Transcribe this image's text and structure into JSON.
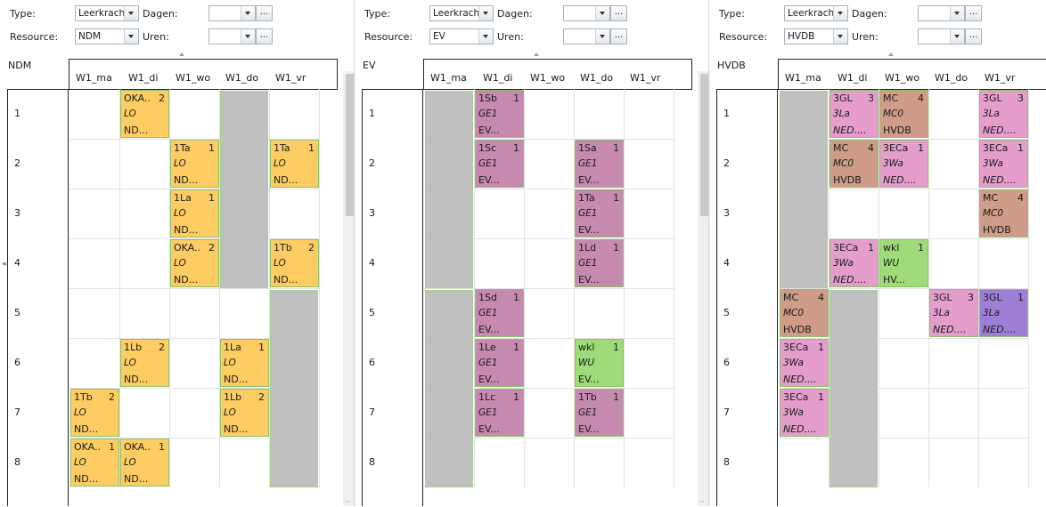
{
  "labels": {
    "type": "Type:",
    "dagen": "Dagen:",
    "resource": "Resource:",
    "uren": "Uren:",
    "ellipsis": "..."
  },
  "days": [
    "W1_ma",
    "W1_di",
    "W1_wo",
    "W1_do",
    "W1_vr"
  ],
  "hours": [
    "1",
    "2",
    "3",
    "4",
    "5",
    "6",
    "7",
    "8"
  ],
  "panels": [
    {
      "type_value": "Leerkrach",
      "resource_value": "NDM",
      "title": "NDM",
      "unavailable": [
        {
          "day": 3,
          "from": 0,
          "to": 4
        },
        {
          "day": 4,
          "from": 4,
          "to": 8
        }
      ],
      "lessons": [
        {
          "day": 1,
          "hour": 0,
          "l1": "OKA..",
          "n": "2",
          "l2": "LO",
          "l3": "ND...",
          "color": "orange"
        },
        {
          "day": 2,
          "hour": 1,
          "l1": "1Ta",
          "n": "1",
          "l2": "LO",
          "l3": "ND...",
          "color": "orange"
        },
        {
          "day": 4,
          "hour": 1,
          "l1": "1Ta",
          "n": "1",
          "l2": "LO",
          "l3": "ND...",
          "color": "orange"
        },
        {
          "day": 2,
          "hour": 2,
          "l1": "1La",
          "n": "1",
          "l2": "LO",
          "l3": "ND...",
          "color": "orange"
        },
        {
          "day": 2,
          "hour": 3,
          "l1": "OKA..",
          "n": "2",
          "l2": "LO",
          "l3": "ND...",
          "color": "orange"
        },
        {
          "day": 4,
          "hour": 3,
          "l1": "1Tb",
          "n": "2",
          "l2": "LO",
          "l3": "ND...",
          "color": "orange"
        },
        {
          "day": 1,
          "hour": 5,
          "l1": "1Lb",
          "n": "2",
          "l2": "LO",
          "l3": "ND...",
          "color": "orange"
        },
        {
          "day": 3,
          "hour": 5,
          "l1": "1La",
          "n": "1",
          "l2": "LO",
          "l3": "ND...",
          "color": "orange"
        },
        {
          "day": 0,
          "hour": 6,
          "l1": "1Tb",
          "n": "2",
          "l2": "LO",
          "l3": "ND...",
          "color": "orange"
        },
        {
          "day": 3,
          "hour": 6,
          "l1": "1Lb",
          "n": "2",
          "l2": "LO",
          "l3": "ND...",
          "color": "orange"
        },
        {
          "day": 0,
          "hour": 7,
          "l1": "OKA..",
          "n": "1",
          "l2": "LO",
          "l3": "ND...",
          "color": "orange"
        },
        {
          "day": 1,
          "hour": 7,
          "l1": "OKA..",
          "n": "1",
          "l2": "LO",
          "l3": "ND...",
          "color": "orange"
        }
      ]
    },
    {
      "type_value": "Leerkrach",
      "resource_value": "EV",
      "title": "EV",
      "unavailable": [
        {
          "day": 0,
          "from": 0,
          "to": 4
        },
        {
          "day": 0,
          "from": 4,
          "to": 8
        }
      ],
      "lessons": [
        {
          "day": 1,
          "hour": 0,
          "l1": "1Sb",
          "n": "1",
          "l2": "GE1",
          "l3": "EV...",
          "color": "purple"
        },
        {
          "day": 1,
          "hour": 1,
          "l1": "1Sc",
          "n": "1",
          "l2": "GE1",
          "l3": "EV...",
          "color": "purple"
        },
        {
          "day": 3,
          "hour": 1,
          "l1": "1Sa",
          "n": "1",
          "l2": "GE1",
          "l3": "EV...",
          "color": "purple"
        },
        {
          "day": 3,
          "hour": 2,
          "l1": "1Ta",
          "n": "1",
          "l2": "GE1",
          "l3": "EV...",
          "color": "purple"
        },
        {
          "day": 3,
          "hour": 3,
          "l1": "1Ld",
          "n": "1",
          "l2": "GE1",
          "l3": "EV...",
          "color": "purple"
        },
        {
          "day": 1,
          "hour": 4,
          "l1": "1Sd",
          "n": "1",
          "l2": "GE1",
          "l3": "EV...",
          "color": "purple"
        },
        {
          "day": 1,
          "hour": 5,
          "l1": "1Le",
          "n": "1",
          "l2": "GE1",
          "l3": "EV...",
          "color": "purple"
        },
        {
          "day": 3,
          "hour": 5,
          "l1": "wkl",
          "n": "1",
          "l2": "WU",
          "l3": "EV...",
          "color": "green"
        },
        {
          "day": 1,
          "hour": 6,
          "l1": "1Lc",
          "n": "1",
          "l2": "GE1",
          "l3": "EV...",
          "color": "purple"
        },
        {
          "day": 3,
          "hour": 6,
          "l1": "1Tb",
          "n": "1",
          "l2": "GE1",
          "l3": "EV...",
          "color": "purple"
        }
      ]
    },
    {
      "type_value": "Leerkrach",
      "resource_value": "HVDB",
      "title": "HVDB",
      "unavailable": [
        {
          "day": 0,
          "from": 0,
          "to": 4
        },
        {
          "day": 1,
          "from": 4,
          "to": 8
        }
      ],
      "lessons": [
        {
          "day": 1,
          "hour": 0,
          "l1": "3GL",
          "n": "3",
          "l2": "3La",
          "l3": "NED....",
          "color": "pink",
          "italic3": true
        },
        {
          "day": 2,
          "hour": 0,
          "l1": "MC",
          "n": "4",
          "l2": "MC0",
          "l3": "HVDB",
          "color": "brown"
        },
        {
          "day": 4,
          "hour": 0,
          "l1": "3GL",
          "n": "3",
          "l2": "3La",
          "l3": "NED....",
          "color": "pink",
          "italic3": true
        },
        {
          "day": 1,
          "hour": 1,
          "l1": "MC",
          "n": "4",
          "l2": "MC0",
          "l3": "HVDB",
          "color": "brown"
        },
        {
          "day": 2,
          "hour": 1,
          "l1": "3ECa",
          "n": "1",
          "l2": "3Wa",
          "l3": "NED....",
          "color": "pink",
          "italic3": true
        },
        {
          "day": 4,
          "hour": 1,
          "l1": "3ECa",
          "n": "1",
          "l2": "3Wa",
          "l3": "NED....",
          "color": "pink",
          "italic3": true
        },
        {
          "day": 4,
          "hour": 2,
          "l1": "MC",
          "n": "4",
          "l2": "MC0",
          "l3": "HVDB",
          "color": "brown"
        },
        {
          "day": 1,
          "hour": 3,
          "l1": "3ECa",
          "n": "1",
          "l2": "3Wa",
          "l3": "NED....",
          "color": "pink",
          "italic3": true
        },
        {
          "day": 2,
          "hour": 3,
          "l1": "wkl",
          "n": "1",
          "l2": "WU",
          "l3": "HV...",
          "color": "green"
        },
        {
          "day": 0,
          "hour": 4,
          "l1": "MC",
          "n": "4",
          "l2": "MC0",
          "l3": "HVDB",
          "color": "brown"
        },
        {
          "day": 3,
          "hour": 4,
          "l1": "3GL",
          "n": "3",
          "l2": "3La",
          "l3": "NED....",
          "color": "pink",
          "italic3": true
        },
        {
          "day": 4,
          "hour": 4,
          "l1": "3GL",
          "n": "1",
          "l2": "3La",
          "l3": "NED....",
          "color": "violet",
          "italic3": true
        },
        {
          "day": 0,
          "hour": 5,
          "l1": "3ECa",
          "n": "1",
          "l2": "3Wa",
          "l3": "NED....",
          "color": "pink",
          "italic3": true
        },
        {
          "day": 0,
          "hour": 6,
          "l1": "3ECa",
          "n": "1",
          "l2": "3Wa",
          "l3": "NED....",
          "color": "pink",
          "italic3": true
        }
      ]
    }
  ]
}
